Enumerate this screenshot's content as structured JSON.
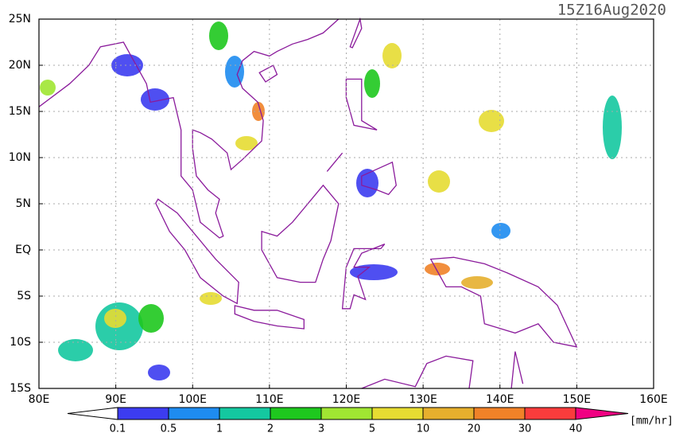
{
  "map": {
    "title": "15Z16Aug2020",
    "lonlim": [
      80,
      160
    ],
    "latlim": [
      -15,
      25
    ],
    "lon_ticks": [
      {
        "value": 80,
        "label": "80E"
      },
      {
        "value": 90,
        "label": "90E"
      },
      {
        "value": 100,
        "label": "100E"
      },
      {
        "value": 110,
        "label": "110E"
      },
      {
        "value": 120,
        "label": "120E"
      },
      {
        "value": 130,
        "label": "130E"
      },
      {
        "value": 140,
        "label": "140E"
      },
      {
        "value": 150,
        "label": "150E"
      },
      {
        "value": 160,
        "label": "160E"
      }
    ],
    "lat_ticks": [
      {
        "value": 25,
        "label": "25N"
      },
      {
        "value": 20,
        "label": "20N"
      },
      {
        "value": 15,
        "label": "15N"
      },
      {
        "value": 10,
        "label": "10N"
      },
      {
        "value": 5,
        "label": "5N"
      },
      {
        "value": 0,
        "label": "EQ"
      },
      {
        "value": -5,
        "label": "5S"
      },
      {
        "value": -10,
        "label": "10S"
      },
      {
        "value": -15,
        "label": "15S"
      }
    ],
    "grid": true,
    "colorbar": {
      "levels": [
        0.1,
        0.5,
        1,
        2,
        3,
        5,
        10,
        20,
        30,
        40
      ],
      "colors": [
        "#3c3cf0",
        "#1e8cf0",
        "#14c8a0",
        "#1ec81e",
        "#a0e632",
        "#e6dc32",
        "#e6af2d",
        "#f08228",
        "#fa3c3c",
        "#f00082"
      ],
      "unit": "[mm/hr]"
    }
  }
}
